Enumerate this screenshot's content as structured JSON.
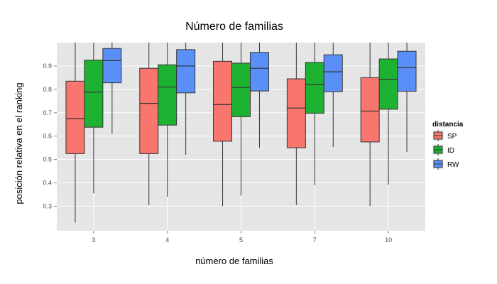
{
  "chart_data": {
    "type": "boxplot",
    "title": "Número de familias",
    "xlabel": "número de familias",
    "ylabel": "posición relativa en el ranking",
    "categories": [
      "3",
      "4",
      "5",
      "7",
      "10"
    ],
    "y_ticks": [
      "0.3",
      "0.4",
      "0.5",
      "0.6",
      "0.7",
      "0.8",
      "0.9"
    ],
    "ylim": [
      0.195,
      1.0
    ],
    "grid": true,
    "legend": {
      "title": "distancia",
      "position": "right",
      "entries": [
        "SP",
        "ID",
        "RW"
      ]
    },
    "colors": {
      "SP": "#f8766d",
      "ID": "#1eb233",
      "RW": "#5b8ff8"
    },
    "series": [
      {
        "name": "SP",
        "boxes": [
          {
            "min": 0.23,
            "q1": 0.525,
            "median": 0.675,
            "q3": 0.835,
            "max": 1.0
          },
          {
            "min": 0.305,
            "q1": 0.525,
            "median": 0.74,
            "q3": 0.89,
            "max": 1.0
          },
          {
            "min": 0.3,
            "q1": 0.578,
            "median": 0.735,
            "q3": 0.92,
            "max": 1.0
          },
          {
            "min": 0.305,
            "q1": 0.55,
            "median": 0.72,
            "q3": 0.845,
            "max": 1.0
          },
          {
            "min": 0.3,
            "q1": 0.575,
            "median": 0.707,
            "q3": 0.85,
            "max": 1.0
          }
        ]
      },
      {
        "name": "ID",
        "boxes": [
          {
            "min": 0.355,
            "q1": 0.638,
            "median": 0.788,
            "q3": 0.925,
            "max": 1.0
          },
          {
            "min": 0.34,
            "q1": 0.647,
            "median": 0.81,
            "q3": 0.905,
            "max": 1.0
          },
          {
            "min": 0.345,
            "q1": 0.683,
            "median": 0.808,
            "q3": 0.912,
            "max": 1.0
          },
          {
            "min": 0.39,
            "q1": 0.698,
            "median": 0.82,
            "q3": 0.915,
            "max": 1.0
          },
          {
            "min": 0.392,
            "q1": 0.715,
            "median": 0.842,
            "q3": 0.93,
            "max": 1.0
          }
        ]
      },
      {
        "name": "RW",
        "boxes": [
          {
            "min": 0.61,
            "q1": 0.828,
            "median": 0.923,
            "q3": 0.975,
            "max": 1.0
          },
          {
            "min": 0.52,
            "q1": 0.785,
            "median": 0.9,
            "q3": 0.97,
            "max": 1.0
          },
          {
            "min": 0.55,
            "q1": 0.793,
            "median": 0.89,
            "q3": 0.958,
            "max": 1.0
          },
          {
            "min": 0.553,
            "q1": 0.79,
            "median": 0.875,
            "q3": 0.948,
            "max": 1.0
          },
          {
            "min": 0.532,
            "q1": 0.792,
            "median": 0.893,
            "q3": 0.963,
            "max": 1.0
          }
        ]
      }
    ]
  }
}
